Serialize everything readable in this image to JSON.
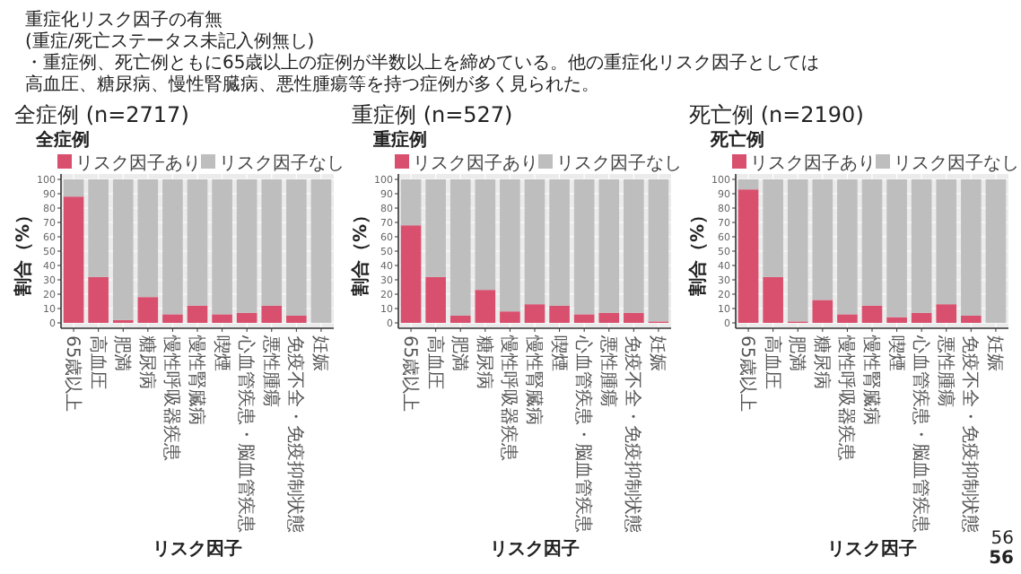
{
  "chart_data": [
    {
      "type": "other",
      "title": "重症化リスク因子の有無",
      "subtitle": "(重症/死亡ステータス未記入例無し)",
      "annotations": [
        "・重症例、死亡例ともに65歳以上の症例が半数以上を締めている。他の重症化リスク因子としては",
        "高血圧、糖尿病、慢性腎臓病、悪性腫瘍等を持つ症例が多く見られた。",
        "56",
        "56"
      ]
    },
    {
      "type": "bar",
      "stacked": true,
      "title": "全症例 (n=2717)",
      "subtitle": "全症例",
      "xlabel": "リスク因子",
      "ylabel": "割合（%）",
      "legend": "top",
      "grid": true,
      "ylim": [
        0,
        100
      ],
      "yticks": [
        0,
        10,
        20,
        30,
        40,
        50,
        60,
        70,
        80,
        90,
        100
      ],
      "categories": [
        "65歳以上",
        "高血圧",
        "肥満",
        "糖尿病",
        "慢性呼吸器疾患",
        "慢性腎臓病",
        "喫煙",
        "心血管疾患・脳血管疾患",
        "悪性腫瘍",
        "免疫不全・免疫抑制状態",
        "妊娠"
      ],
      "series": [
        {
          "name": "リスク因子あり",
          "color": "#d9506e",
          "values": [
            88,
            32,
            2,
            18,
            6,
            12,
            6,
            7,
            12,
            5,
            0
          ]
        },
        {
          "name": "リスク因子なし",
          "color": "#bebebe",
          "values": [
            12,
            68,
            98,
            82,
            94,
            88,
            94,
            93,
            88,
            95,
            100
          ]
        }
      ]
    },
    {
      "type": "bar",
      "stacked": true,
      "title": "重症例 (n=527)",
      "subtitle": "重症例",
      "xlabel": "リスク因子",
      "ylabel": "割合（%）",
      "legend": "top",
      "grid": true,
      "ylim": [
        0,
        100
      ],
      "yticks": [
        0,
        10,
        20,
        30,
        40,
        50,
        60,
        70,
        80,
        90,
        100
      ],
      "categories": [
        "65歳以上",
        "高血圧",
        "肥満",
        "糖尿病",
        "慢性呼吸器疾患",
        "慢性腎臓病",
        "喫煙",
        "心血管疾患・脳血管疾患",
        "悪性腫瘍",
        "免疫不全・免疫抑制状態",
        "妊娠"
      ],
      "series": [
        {
          "name": "リスク因子あり",
          "color": "#d9506e",
          "values": [
            68,
            32,
            5,
            23,
            8,
            13,
            12,
            6,
            7,
            7,
            1
          ]
        },
        {
          "name": "リスク因子なし",
          "color": "#bebebe",
          "values": [
            32,
            68,
            95,
            77,
            92,
            87,
            88,
            94,
            93,
            93,
            99
          ]
        }
      ]
    },
    {
      "type": "bar",
      "stacked": true,
      "title": "死亡例 (n=2190)",
      "subtitle": "死亡例",
      "xlabel": "リスク因子",
      "ylabel": "割合（%）",
      "legend": "top",
      "grid": true,
      "ylim": [
        0,
        100
      ],
      "yticks": [
        0,
        10,
        20,
        30,
        40,
        50,
        60,
        70,
        80,
        90,
        100
      ],
      "categories": [
        "65歳以上",
        "高血圧",
        "肥満",
        "糖尿病",
        "慢性呼吸器疾患",
        "慢性腎臓病",
        "喫煙",
        "心血管疾患・脳血管疾患",
        "悪性腫瘍",
        "免疫不全・免疫抑制状態",
        "妊娠"
      ],
      "series": [
        {
          "name": "リスク因子あり",
          "color": "#d9506e",
          "values": [
            93,
            32,
            1,
            16,
            6,
            12,
            4,
            7,
            13,
            5,
            0
          ]
        },
        {
          "name": "リスク因子なし",
          "color": "#bebebe",
          "values": [
            7,
            68,
            99,
            84,
            94,
            88,
            96,
            93,
            87,
            95,
            100
          ]
        }
      ]
    }
  ]
}
